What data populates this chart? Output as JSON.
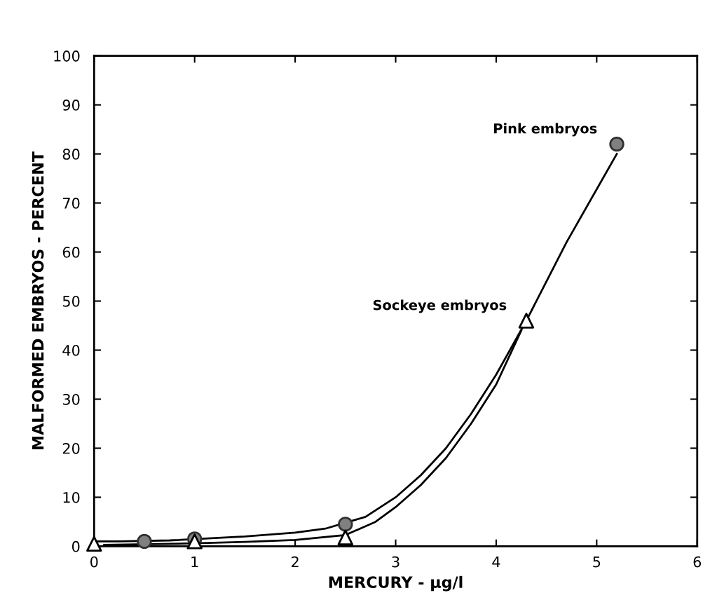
{
  "chart_data": {
    "type": "scatter",
    "xlabel": "MERCURY - µg/l",
    "ylabel": "MALFORMED EMBRYOS - PERCENT",
    "xlim": [
      0,
      6
    ],
    "ylim": [
      0,
      100
    ],
    "xticks": [
      0,
      1,
      2,
      3,
      4,
      5,
      6
    ],
    "yticks": [
      0,
      10,
      20,
      30,
      40,
      50,
      60,
      70,
      80,
      90,
      100
    ],
    "grid": false,
    "legend": false,
    "series": [
      {
        "name": "Pink embryos",
        "marker": "circle",
        "color": "#808080",
        "x": [
          0.5,
          1,
          2.5,
          5.2
        ],
        "values": [
          1,
          1.5,
          4.5,
          82
        ]
      },
      {
        "name": "Sockeye embryos",
        "marker": "triangle",
        "color": "#000000",
        "x": [
          0,
          1,
          2.5,
          4.3
        ],
        "values": [
          0.5,
          1,
          1.8,
          46
        ]
      },
      {
        "type": "line",
        "color": "#000000",
        "line_style": "solid",
        "marker": "none",
        "x": [
          0,
          0.25,
          0.75,
          1.5,
          2,
          2.3,
          2.7,
          3,
          3.25,
          3.5,
          3.75,
          4,
          4.3,
          4.7,
          5.2
        ],
        "values": [
          1,
          1,
          1.2,
          2,
          2.8,
          3.6,
          6,
          10,
          14.5,
          20,
          27,
          35,
          46,
          62,
          80
        ]
      },
      {
        "type": "line",
        "color": "#000000",
        "line_style": "solid",
        "marker": "none",
        "x": [
          0.1,
          1,
          1.5,
          2,
          2.5,
          2.8,
          3,
          3.25,
          3.5,
          3.75,
          4,
          4.25
        ],
        "values": [
          0.3,
          0.6,
          0.9,
          1.3,
          2.3,
          5,
          8,
          12.5,
          18,
          25,
          33,
          44
        ]
      }
    ]
  }
}
